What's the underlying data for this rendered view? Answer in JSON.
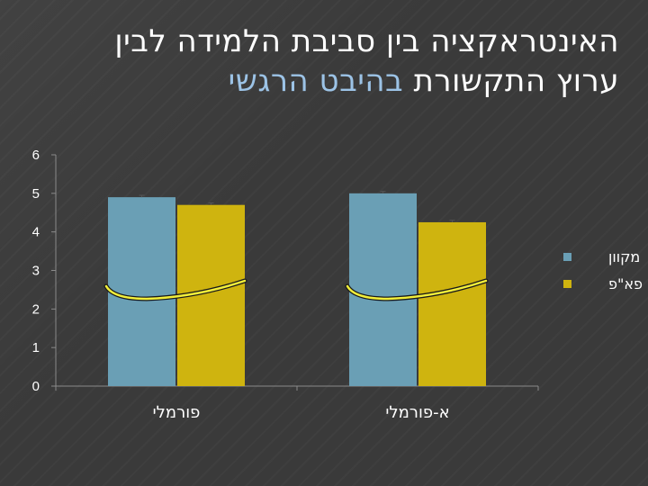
{
  "slide": {
    "title_line1": "האינטראקציה בין סביבת הלמידה לבין",
    "title_line2_part1": "ערוץ התקשורת",
    "title_line2_part2": "בהיבט הרגשי",
    "title_color": "#ffffff",
    "highlight_color": "#9cc3e6",
    "background_color": "#3a3a3a"
  },
  "chart_data": {
    "type": "bar",
    "categories": [
      "פורמלי",
      "א-פורמלי"
    ],
    "series": [
      {
        "name": "מקוון",
        "values": [
          4.9,
          5.0
        ],
        "error": [
          0.05,
          0.05
        ],
        "color": "#6a9fb5"
      },
      {
        "name": "פא\"פ",
        "values": [
          4.7,
          4.25
        ],
        "error": [
          0.05,
          0.05
        ],
        "color": "#cfb40f"
      }
    ],
    "ylim": [
      0,
      6
    ],
    "yticks": [
      "0",
      "1",
      "2",
      "3",
      "4",
      "5",
      "6"
    ],
    "grid": false,
    "legend": "right",
    "annotation": "yellow-curve-interaction",
    "annotation_color": "#f2ef3a"
  }
}
